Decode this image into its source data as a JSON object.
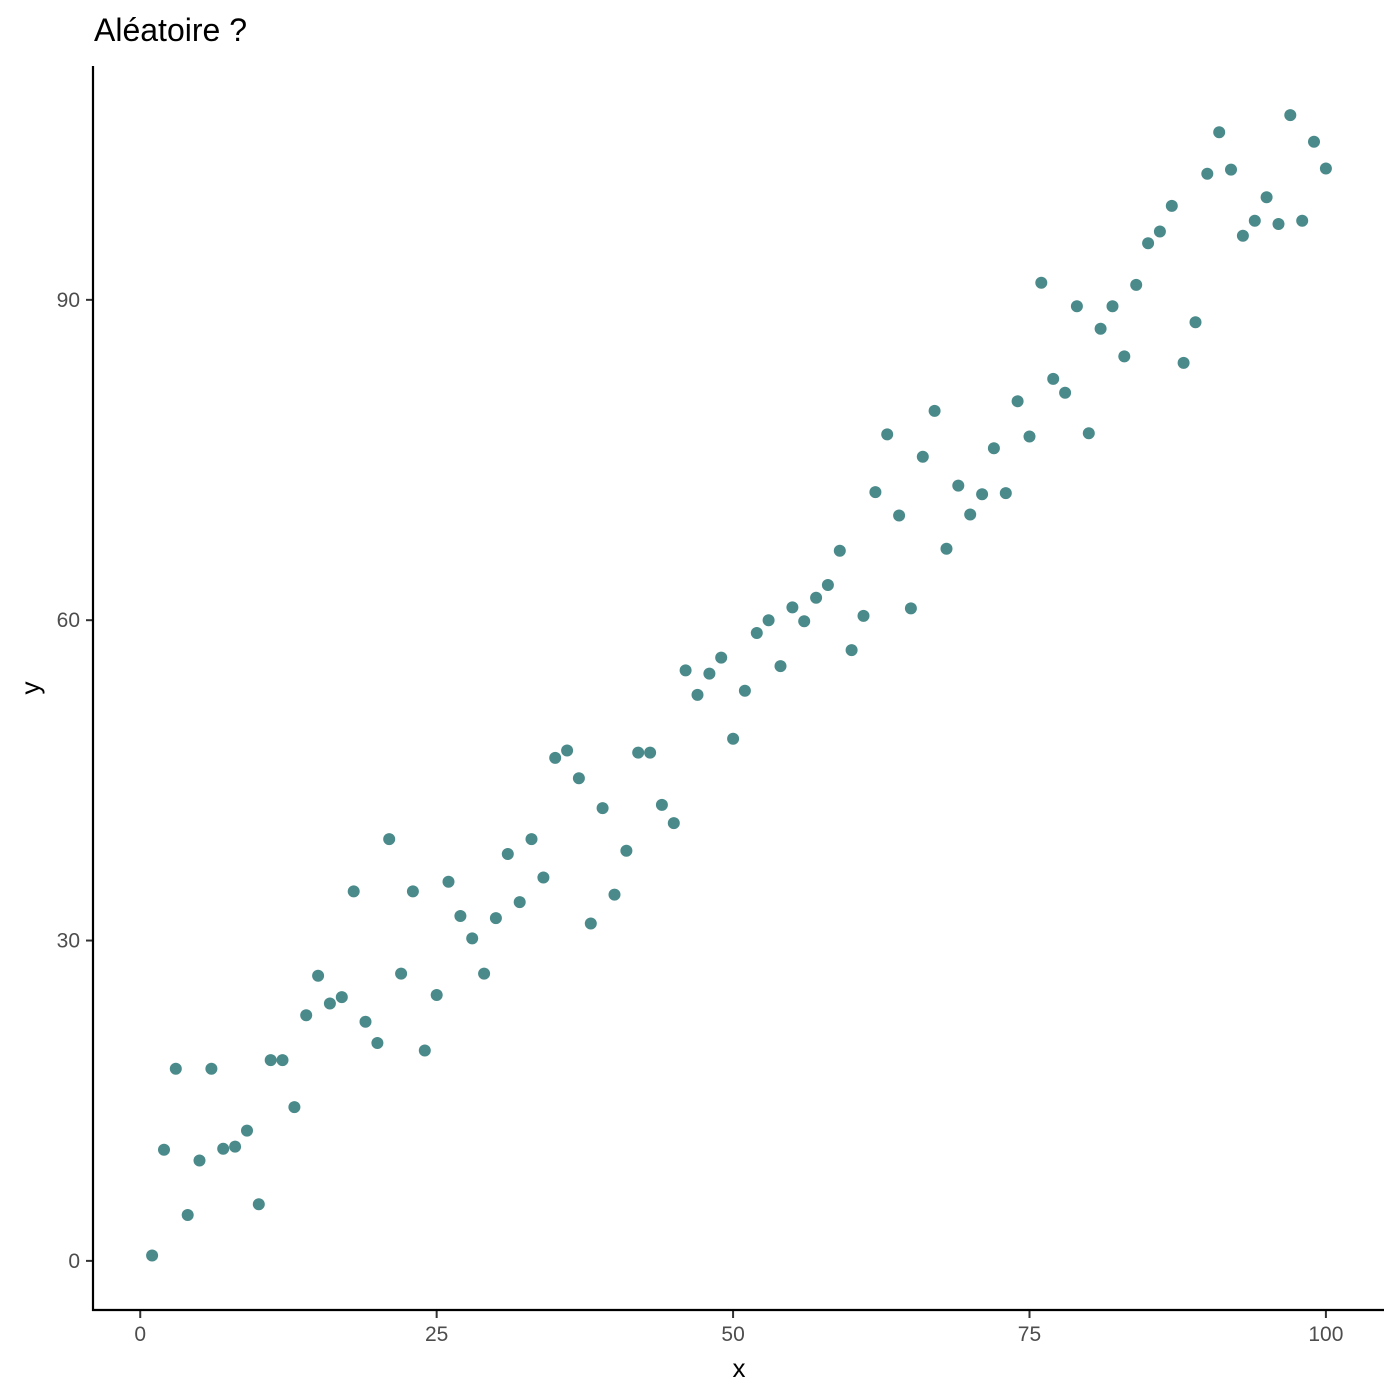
{
  "chart_data": {
    "type": "scatter",
    "title": "Aléatoire ?",
    "xlabel": "x",
    "ylabel": "y",
    "xlim": [
      -3.9,
      104.9
    ],
    "ylim": [
      -4.6,
      111.9
    ],
    "grid": false,
    "color": "#4a8a8a",
    "x_ticks": [
      0,
      25,
      50,
      75,
      100
    ],
    "x_tick_labels": [
      "0",
      "25",
      "50",
      "75",
      "100"
    ],
    "y_ticks": [
      0,
      30,
      60,
      90
    ],
    "y_tick_labels": [
      "0",
      "30",
      "60",
      "90"
    ],
    "points": [
      [
        1,
        0.5
      ],
      [
        2,
        10.4
      ],
      [
        3,
        18
      ],
      [
        4,
        4.3
      ],
      [
        5,
        9.4
      ],
      [
        6,
        18
      ],
      [
        7,
        10.5
      ],
      [
        8,
        10.7
      ],
      [
        9,
        12.2
      ],
      [
        10,
        5.3
      ],
      [
        11,
        18.8
      ],
      [
        12,
        18.8
      ],
      [
        13,
        14.4
      ],
      [
        14,
        23
      ],
      [
        15,
        26.7
      ],
      [
        16,
        24.1
      ],
      [
        17,
        24.7
      ],
      [
        18,
        34.6
      ],
      [
        19,
        22.4
      ],
      [
        20,
        20.4
      ],
      [
        21,
        39.5
      ],
      [
        22,
        26.9
      ],
      [
        23,
        34.6
      ],
      [
        24,
        19.7
      ],
      [
        25,
        24.9
      ],
      [
        26,
        35.5
      ],
      [
        27,
        32.3
      ],
      [
        28,
        30.2
      ],
      [
        29,
        26.9
      ],
      [
        30,
        32.1
      ],
      [
        31,
        38.1
      ],
      [
        32,
        33.6
      ],
      [
        33,
        39.5
      ],
      [
        34,
        35.9
      ],
      [
        35,
        47.1
      ],
      [
        36,
        47.8
      ],
      [
        37,
        45.2
      ],
      [
        38,
        31.6
      ],
      [
        39,
        42.4
      ],
      [
        40,
        34.3
      ],
      [
        41,
        38.4
      ],
      [
        42,
        47.6
      ],
      [
        43,
        47.6
      ],
      [
        44,
        42.7
      ],
      [
        45,
        41
      ],
      [
        46,
        55.3
      ],
      [
        47,
        53
      ],
      [
        48,
        55
      ],
      [
        49,
        56.5
      ],
      [
        50,
        48.9
      ],
      [
        51,
        53.4
      ],
      [
        52,
        58.8
      ],
      [
        53,
        60
      ],
      [
        54,
        55.7
      ],
      [
        55,
        61.2
      ],
      [
        56,
        59.9
      ],
      [
        57,
        62.1
      ],
      [
        58,
        63.3
      ],
      [
        59,
        66.5
      ],
      [
        60,
        57.2
      ],
      [
        61,
        60.4
      ],
      [
        62,
        72
      ],
      [
        63,
        77.4
      ],
      [
        64,
        69.8
      ],
      [
        65,
        61.1
      ],
      [
        66,
        75.3
      ],
      [
        67,
        79.6
      ],
      [
        68,
        66.7
      ],
      [
        69,
        72.6
      ],
      [
        70,
        69.9
      ],
      [
        71,
        71.8
      ],
      [
        72,
        76.1
      ],
      [
        73,
        71.9
      ],
      [
        74,
        80.5
      ],
      [
        75,
        77.2
      ],
      [
        76,
        91.6
      ],
      [
        77,
        82.6
      ],
      [
        78,
        81.3
      ],
      [
        79,
        89.4
      ],
      [
        80,
        77.5
      ],
      [
        81,
        87.3
      ],
      [
        82,
        89.4
      ],
      [
        83,
        84.7
      ],
      [
        84,
        91.4
      ],
      [
        85,
        95.3
      ],
      [
        86,
        96.4
      ],
      [
        87,
        98.8
      ],
      [
        88,
        84.1
      ],
      [
        89,
        87.9
      ],
      [
        90,
        101.8
      ],
      [
        91,
        105.7
      ],
      [
        92,
        102.2
      ],
      [
        93,
        96
      ],
      [
        94,
        97.4
      ],
      [
        95,
        99.6
      ],
      [
        96,
        97.1
      ],
      [
        97,
        107.3
      ],
      [
        98,
        97.4
      ],
      [
        99,
        104.8
      ],
      [
        100,
        102.3
      ]
    ]
  }
}
